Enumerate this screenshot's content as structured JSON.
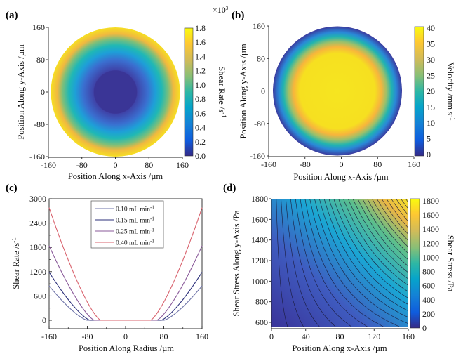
{
  "figure": {
    "panels": [
      "(a)",
      "(b)",
      "(c)",
      "(d)"
    ]
  },
  "chart_data": [
    {
      "id": "a",
      "panel_label": "(a)",
      "type": "heatmap",
      "description": "Radial shear-rate field inside circular channel cross-section; low in core (r < ~60 µm), rising to max at wall",
      "xlabel": "Position Along x-Axis /µm",
      "ylabel": "Position Along y-Axis /µm",
      "xlim": [
        -160,
        160
      ],
      "ylim": [
        -160,
        160
      ],
      "xticks": [
        "-160",
        "-80",
        "0",
        "80",
        "160"
      ],
      "yticks": [
        "160",
        "80",
        "0",
        "-80",
        "-160"
      ],
      "radius": 160,
      "core_radius": 52,
      "profile": "zero inside core, increases toward wall",
      "colorbar": {
        "label": "Shear Rate /s",
        "label_sup": "-1",
        "multiplier": "×10",
        "multiplier_sup": "3",
        "range": [
          0,
          1.8
        ],
        "ticks": [
          "1.8",
          "1.6",
          "1.4",
          "1.2",
          "1.0",
          "0.8",
          "0.6",
          "0.4",
          "0.2",
          "0.0"
        ]
      }
    },
    {
      "id": "b",
      "panel_label": "(b)",
      "type": "heatmap",
      "description": "Radial velocity field; maximum in center, zero at wall",
      "xlabel": "Position Along x-Axis /µm",
      "ylabel": "Position Along y-Axis /µm",
      "xlim": [
        -160,
        160
      ],
      "ylim": [
        -160,
        160
      ],
      "xticks": [
        "-160",
        "-80",
        "0",
        "80",
        "160"
      ],
      "yticks": [
        "160",
        "80",
        "0",
        "-80",
        "-160"
      ],
      "radius": 160,
      "center_offset_x": -10,
      "colorbar": {
        "label": "Velocity /mm s",
        "label_sup": "-1",
        "range": [
          0,
          40
        ],
        "ticks": [
          "40",
          "35",
          "30",
          "25",
          "20",
          "15",
          "10",
          "5",
          "0"
        ]
      }
    },
    {
      "id": "c",
      "panel_label": "(c)",
      "type": "line",
      "xlabel": "Position Along Radius /µm",
      "ylabel": "Shear Rate /s",
      "ylabel_sup": "-1",
      "xlim": [
        -160,
        160
      ],
      "ylim": [
        -200,
        3000
      ],
      "xticks": [
        "-160",
        "-80",
        "0",
        "80",
        "160"
      ],
      "yticks": [
        "3000",
        "2400",
        "1800",
        "1200",
        "600",
        "0"
      ],
      "legend_position": "top-center",
      "series": [
        {
          "name": "0.10 mL min",
          "sup": "-1",
          "color": "#6e73a8",
          "plug_radius": 80,
          "wall_value": 850
        },
        {
          "name": "0.15 mL min",
          "sup": "-1",
          "color": "#2b2f7a",
          "plug_radius": 74,
          "wall_value": 1190
        },
        {
          "name": "0.25 mL min",
          "sup": "-1",
          "color": "#8a5a9a",
          "plug_radius": 65,
          "wall_value": 1840
        },
        {
          "name": "0.40 mL min",
          "sup": "-1",
          "color": "#d9636e",
          "plug_radius": 52,
          "wall_value": 2780
        }
      ]
    },
    {
      "id": "d",
      "panel_label": "(d)",
      "type": "heatmap",
      "description": "Contour map of shear stress vs position along x-axis and wall shear stress",
      "xlabel": "Position Along x-Axis /µm",
      "ylabel": "Shear Stress Along y-Axis /Pa",
      "xlim": [
        0,
        160
      ],
      "ylim": [
        550,
        1800
      ],
      "xticks": [
        "0",
        "40",
        "80",
        "120",
        "160"
      ],
      "yticks": [
        "1800",
        "1600",
        "1400",
        "1200",
        "1000",
        "800",
        "600"
      ],
      "contour_levels": 30,
      "colorbar": {
        "label": "Shear Stress /Pa",
        "range": [
          0,
          1800
        ],
        "ticks": [
          "1800",
          "1600",
          "1400",
          "1200",
          "1000",
          "800",
          "600",
          "400",
          "200",
          "0"
        ]
      }
    }
  ]
}
